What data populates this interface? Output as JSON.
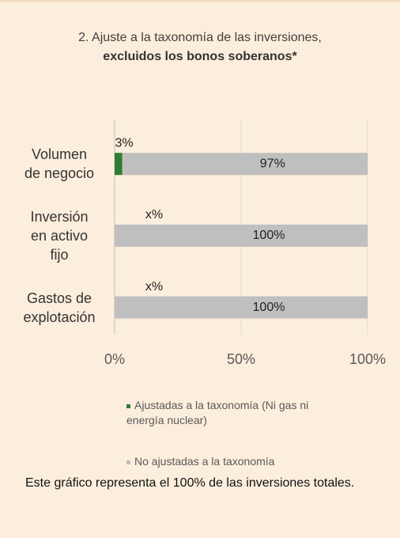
{
  "chart_data": {
    "type": "stacked_barh",
    "title": "2. Ajuste a la taxonomía de las inversiones,",
    "subtitle": "excluidos los bonos soberanos*",
    "categories": [
      "Volumen\nde negocio",
      "Inversión\nen activo\nfijo",
      "Gastos de\nexplotación"
    ],
    "series": [
      {
        "name": "Ajustadas a la taxonomía (Ni gas ni energía nuclear)",
        "color": "#2e7d32",
        "values": [
          3,
          null,
          null
        ],
        "value_labels": [
          "3%",
          "x%",
          "x%"
        ]
      },
      {
        "name": "No ajustadas a la taxonomía",
        "color": "#bfbfbf",
        "values": [
          97,
          100,
          100
        ],
        "value_labels": [
          "97%",
          "100%",
          "100%"
        ]
      }
    ],
    "xlim": [
      0,
      100
    ],
    "xticks": [
      {
        "value": 0,
        "label": "0%"
      },
      {
        "value": 50,
        "label": "50%"
      },
      {
        "value": 100,
        "label": "100%"
      }
    ],
    "grid": true,
    "note": "Este gráfico representa el 100% de las inversiones totales."
  }
}
